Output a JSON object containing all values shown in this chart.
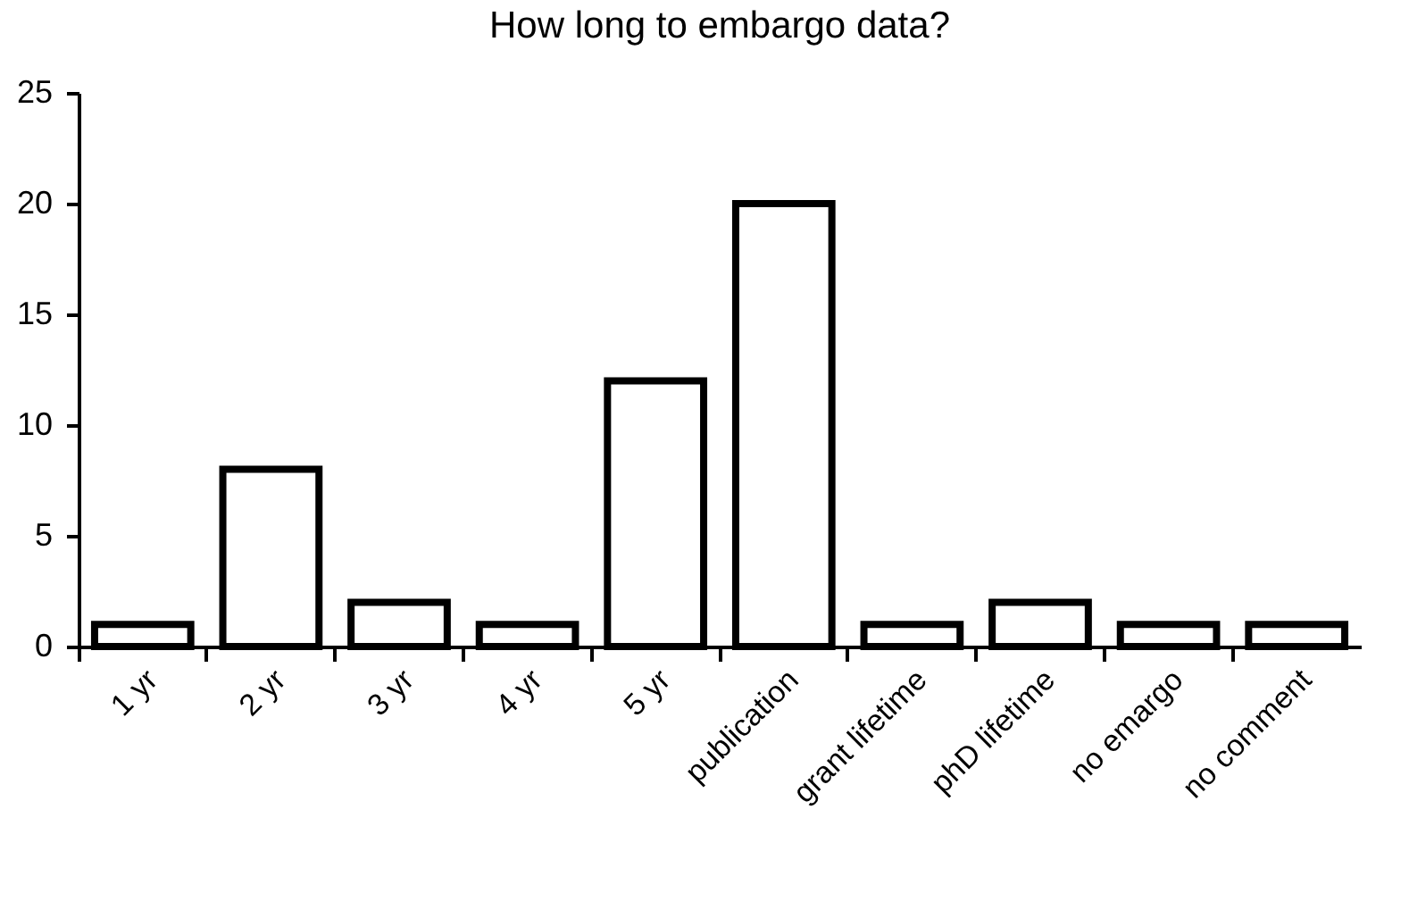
{
  "chart_data": {
    "type": "bar",
    "title": "How long to embargo data?",
    "categories": [
      "1 yr",
      "2 yr",
      "3 yr",
      "4 yr",
      "5 yr",
      "publication",
      "grant lifetime",
      "phD lifetime",
      "no emargo",
      "no comment"
    ],
    "values": [
      1,
      8,
      2,
      1,
      12,
      20,
      1,
      2,
      1,
      1
    ],
    "color": "#ffffff",
    "ylim": [
      0,
      25
    ],
    "yticks": [
      0,
      5,
      10,
      15,
      20,
      25
    ],
    "grid": false
  }
}
